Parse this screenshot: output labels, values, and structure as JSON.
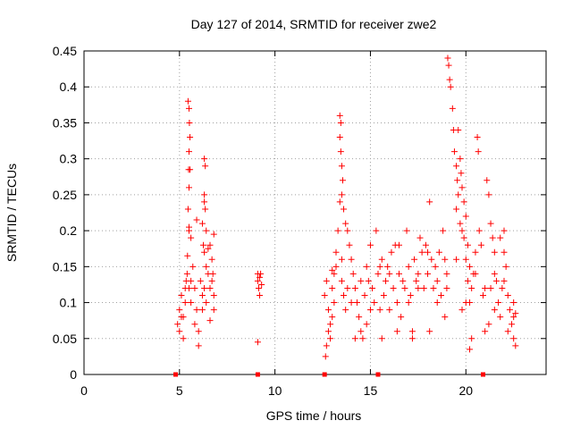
{
  "chart_data": {
    "type": "scatter",
    "title": "Day 127 of 2014, SRMTID for receiver zwe2",
    "xlabel": "GPS time / hours",
    "ylabel": "SRMTID / TECUs",
    "xlim": [
      0,
      24.2
    ],
    "ylim": [
      0,
      0.45
    ],
    "grid": true,
    "marker": "+",
    "marker_color": "#ff0000",
    "axis_color": "#000000",
    "grid_color": "#a0a0a0",
    "x_ticks": [
      0,
      5,
      10,
      15,
      20
    ],
    "x_tick_labels": [
      "0",
      "5",
      "10",
      "15",
      "20"
    ],
    "y_ticks": [
      0,
      0.05,
      0.1,
      0.15,
      0.2,
      0.25,
      0.3,
      0.35,
      0.4,
      0.45
    ],
    "y_tick_labels": [
      "0",
      "0.05",
      "0.1",
      "0.15",
      "0.2",
      "0.25",
      "0.3",
      "0.35",
      "0.4",
      "0.45"
    ],
    "gap_markers_x": [
      4.8,
      9.1,
      12.6,
      15.4,
      20.9
    ],
    "series": [
      {
        "name": "zwe2",
        "points": [
          [
            4.9,
            0.07
          ],
          [
            5.0,
            0.09
          ],
          [
            5.1,
            0.11
          ],
          [
            5.2,
            0.08
          ],
          [
            5.3,
            0.1
          ],
          [
            5.35,
            0.13
          ],
          [
            5.5,
            0.12
          ],
          [
            5.6,
            0.1
          ],
          [
            5.7,
            0.15
          ],
          [
            5.8,
            0.12
          ],
          [
            5.9,
            0.09
          ],
          [
            6.0,
            0.06
          ],
          [
            6.1,
            0.13
          ],
          [
            6.2,
            0.11
          ],
          [
            6.3,
            0.12
          ],
          [
            6.4,
            0.1
          ],
          [
            6.5,
            0.14
          ],
          [
            6.6,
            0.12
          ],
          [
            6.7,
            0.13
          ],
          [
            6.8,
            0.11
          ],
          [
            5.0,
            0.06
          ],
          [
            5.1,
            0.08
          ],
          [
            5.2,
            0.05
          ],
          [
            5.3,
            0.12
          ],
          [
            5.4,
            0.14
          ],
          [
            5.6,
            0.13
          ],
          [
            5.8,
            0.07
          ],
          [
            6.0,
            0.04
          ],
          [
            6.2,
            0.09
          ],
          [
            6.4,
            0.15
          ],
          [
            5.45,
            0.38
          ],
          [
            5.5,
            0.37
          ],
          [
            5.52,
            0.35
          ],
          [
            5.55,
            0.33
          ],
          [
            5.5,
            0.31
          ],
          [
            5.48,
            0.285
          ],
          [
            5.55,
            0.285
          ],
          [
            5.5,
            0.26
          ],
          [
            5.45,
            0.23
          ],
          [
            5.5,
            0.205
          ],
          [
            5.5,
            0.2
          ],
          [
            5.42,
            0.165
          ],
          [
            5.6,
            0.19
          ],
          [
            5.9,
            0.215
          ],
          [
            6.3,
            0.3
          ],
          [
            6.35,
            0.29
          ],
          [
            6.3,
            0.25
          ],
          [
            6.3,
            0.24
          ],
          [
            6.35,
            0.23
          ],
          [
            6.4,
            0.2
          ],
          [
            6.2,
            0.21
          ],
          [
            6.25,
            0.18
          ],
          [
            6.3,
            0.17
          ],
          [
            6.5,
            0.175
          ],
          [
            6.6,
            0.18
          ],
          [
            6.8,
            0.195
          ],
          [
            6.7,
            0.16
          ],
          [
            6.75,
            0.14
          ],
          [
            6.8,
            0.09
          ],
          [
            6.6,
            0.075
          ],
          [
            9.1,
            0.14
          ],
          [
            9.1,
            0.13
          ],
          [
            9.15,
            0.12
          ],
          [
            9.2,
            0.135
          ],
          [
            9.2,
            0.11
          ],
          [
            9.25,
            0.14
          ],
          [
            9.3,
            0.125
          ],
          [
            9.1,
            0.045
          ],
          [
            12.6,
            0.11
          ],
          [
            12.7,
            0.13
          ],
          [
            12.8,
            0.09
          ],
          [
            12.9,
            0.07
          ],
          [
            13.0,
            0.12
          ],
          [
            13.1,
            0.1
          ],
          [
            13.2,
            0.15
          ],
          [
            13.3,
            0.2
          ],
          [
            13.4,
            0.24
          ],
          [
            13.5,
            0.13
          ],
          [
            12.65,
            0.025
          ],
          [
            12.7,
            0.04
          ],
          [
            12.8,
            0.06
          ],
          [
            12.9,
            0.05
          ],
          [
            13.0,
            0.08
          ],
          [
            13.1,
            0.14
          ],
          [
            13.2,
            0.17
          ],
          [
            13.6,
            0.11
          ],
          [
            13.7,
            0.09
          ],
          [
            13.8,
            0.12
          ],
          [
            13.4,
            0.36
          ],
          [
            13.45,
            0.35
          ],
          [
            13.4,
            0.33
          ],
          [
            13.45,
            0.31
          ],
          [
            13.5,
            0.29
          ],
          [
            13.55,
            0.27
          ],
          [
            13.5,
            0.25
          ],
          [
            13.6,
            0.23
          ],
          [
            13.7,
            0.21
          ],
          [
            13.8,
            0.2
          ],
          [
            13.9,
            0.18
          ],
          [
            14.0,
            0.16
          ],
          [
            14.1,
            0.14
          ],
          [
            14.2,
            0.12
          ],
          [
            14.3,
            0.1
          ],
          [
            14.4,
            0.08
          ],
          [
            14.5,
            0.06
          ],
          [
            14.6,
            0.05
          ],
          [
            14.7,
            0.11
          ],
          [
            14.8,
            0.15
          ],
          [
            14.9,
            0.13
          ],
          [
            15.0,
            0.18
          ],
          [
            15.1,
            0.12
          ],
          [
            15.2,
            0.1
          ],
          [
            15.3,
            0.2
          ],
          [
            15.4,
            0.14
          ],
          [
            15.5,
            0.09
          ],
          [
            15.6,
            0.16
          ],
          [
            15.7,
            0.11
          ],
          [
            15.8,
            0.13
          ],
          [
            15.9,
            0.15
          ],
          [
            16.0,
            0.09
          ],
          [
            16.1,
            0.17
          ],
          [
            16.2,
            0.12
          ],
          [
            16.3,
            0.18
          ],
          [
            16.4,
            0.1
          ],
          [
            16.5,
            0.14
          ],
          [
            16.6,
            0.08
          ],
          [
            16.7,
            0.13
          ],
          [
            16.8,
            0.12
          ],
          [
            16.9,
            0.2
          ],
          [
            17.0,
            0.15
          ],
          [
            17.1,
            0.11
          ],
          [
            17.2,
            0.06
          ],
          [
            17.3,
            0.16
          ],
          [
            17.4,
            0.13
          ],
          [
            17.5,
            0.14
          ],
          [
            17.6,
            0.19
          ],
          [
            17.7,
            0.17
          ],
          [
            17.8,
            0.12
          ],
          [
            17.9,
            0.18
          ],
          [
            18.0,
            0.14
          ],
          [
            18.1,
            0.24
          ],
          [
            18.2,
            0.16
          ],
          [
            18.3,
            0.12
          ],
          [
            18.4,
            0.15
          ],
          [
            18.5,
            0.13
          ],
          [
            18.6,
            0.17
          ],
          [
            18.7,
            0.11
          ],
          [
            18.8,
            0.2
          ],
          [
            18.9,
            0.16
          ],
          [
            19.0,
            0.14
          ],
          [
            19.05,
            0.44
          ],
          [
            19.1,
            0.43
          ],
          [
            19.15,
            0.41
          ],
          [
            19.2,
            0.4
          ],
          [
            19.3,
            0.37
          ],
          [
            19.35,
            0.34
          ],
          [
            19.4,
            0.31
          ],
          [
            19.5,
            0.29
          ],
          [
            19.55,
            0.27
          ],
          [
            19.6,
            0.25
          ],
          [
            19.5,
            0.23
          ],
          [
            19.7,
            0.21
          ],
          [
            19.8,
            0.2
          ],
          [
            19.9,
            0.19
          ],
          [
            20.0,
            0.22
          ],
          [
            20.1,
            0.18
          ],
          [
            20.2,
            0.15
          ],
          [
            20.3,
            0.12
          ],
          [
            19.6,
            0.34
          ],
          [
            19.7,
            0.3
          ],
          [
            19.75,
            0.28
          ],
          [
            19.8,
            0.26
          ],
          [
            19.9,
            0.24
          ],
          [
            20.0,
            0.16
          ],
          [
            20.1,
            0.13
          ],
          [
            20.2,
            0.1
          ],
          [
            20.3,
            0.05
          ],
          [
            20.2,
            0.035
          ],
          [
            20.4,
            0.14
          ],
          [
            20.5,
            0.17
          ],
          [
            20.6,
            0.33
          ],
          [
            20.65,
            0.31
          ],
          [
            20.7,
            0.2
          ],
          [
            20.8,
            0.18
          ],
          [
            20.9,
            0.11
          ],
          [
            21.0,
            0.06
          ],
          [
            21.1,
            0.27
          ],
          [
            21.2,
            0.25
          ],
          [
            21.3,
            0.21
          ],
          [
            21.4,
            0.19
          ],
          [
            21.5,
            0.17
          ],
          [
            21.6,
            0.13
          ],
          [
            21.7,
            0.1
          ],
          [
            21.8,
            0.08
          ],
          [
            21.9,
            0.12
          ],
          [
            22.0,
            0.17
          ],
          [
            22.1,
            0.15
          ],
          [
            22.2,
            0.11
          ],
          [
            22.3,
            0.09
          ],
          [
            22.4,
            0.07
          ],
          [
            22.5,
            0.1
          ],
          [
            22.6,
            0.085
          ],
          [
            22.6,
            0.04
          ],
          [
            22.5,
            0.05
          ],
          [
            22.0,
            0.2
          ],
          [
            21.8,
            0.19
          ],
          [
            21.5,
            0.14
          ],
          [
            21.3,
            0.12
          ],
          [
            13.0,
            0.145
          ],
          [
            13.5,
            0.16
          ],
          [
            14.0,
            0.1
          ],
          [
            14.5,
            0.13
          ],
          [
            15.0,
            0.09
          ],
          [
            15.5,
            0.15
          ],
          [
            16.0,
            0.14
          ],
          [
            16.5,
            0.18
          ],
          [
            17.0,
            0.1
          ],
          [
            17.5,
            0.12
          ],
          [
            18.0,
            0.17
          ],
          [
            18.5,
            0.1
          ],
          [
            19.0,
            0.12
          ],
          [
            19.5,
            0.16
          ],
          [
            20.0,
            0.1
          ],
          [
            20.5,
            0.14
          ],
          [
            21.0,
            0.12
          ],
          [
            21.5,
            0.09
          ],
          [
            22.0,
            0.13
          ],
          [
            22.5,
            0.08
          ],
          [
            14.2,
            0.05
          ],
          [
            14.8,
            0.07
          ],
          [
            15.6,
            0.05
          ],
          [
            16.4,
            0.06
          ],
          [
            17.2,
            0.05
          ],
          [
            18.1,
            0.06
          ],
          [
            18.9,
            0.08
          ],
          [
            19.8,
            0.09
          ],
          [
            21.2,
            0.07
          ],
          [
            22.2,
            0.06
          ]
        ]
      }
    ]
  }
}
